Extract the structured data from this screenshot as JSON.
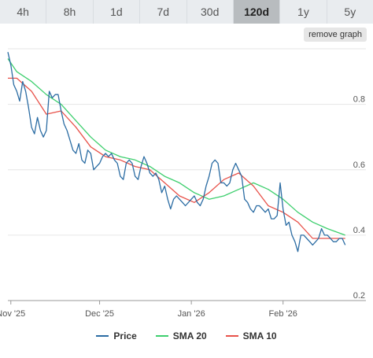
{
  "tabs": [
    "4h",
    "8h",
    "1d",
    "7d",
    "30d",
    "120d",
    "1y",
    "5y"
  ],
  "active_tab": "120d",
  "remove_graph_label": "remove graph",
  "colors": {
    "price": "#2b6ca3",
    "sma20": "#3ecf6e",
    "sma10": "#e8524a",
    "grid": "#e6e6e6"
  },
  "chart_data": {
    "type": "line",
    "x_ticks": [
      {
        "date": "2025-11-01",
        "label": "Nov '25"
      },
      {
        "date": "2025-12-01",
        "label": "Dec '25"
      },
      {
        "date": "2026-01-01",
        "label": "Jan '26"
      },
      {
        "date": "2026-02-01",
        "label": "Feb '26"
      }
    ],
    "x_range": [
      "2025-10-31",
      "2026-03-01"
    ],
    "y_ticks": [
      0.2,
      0.4,
      0.6,
      0.8
    ],
    "ylim": [
      0.2,
      0.97
    ],
    "grid": true,
    "legend": "bottom",
    "series": [
      {
        "name": "Price",
        "color_key": "price",
        "points": [
          [
            "2025-10-31",
            0.96
          ],
          [
            "2025-11-01",
            0.92
          ],
          [
            "2025-11-02",
            0.86
          ],
          [
            "2025-11-03",
            0.84
          ],
          [
            "2025-11-04",
            0.81
          ],
          [
            "2025-11-05",
            0.87
          ],
          [
            "2025-11-06",
            0.84
          ],
          [
            "2025-11-07",
            0.79
          ],
          [
            "2025-11-08",
            0.73
          ],
          [
            "2025-11-09",
            0.71
          ],
          [
            "2025-11-10",
            0.76
          ],
          [
            "2025-11-11",
            0.72
          ],
          [
            "2025-11-12",
            0.7
          ],
          [
            "2025-11-13",
            0.72
          ],
          [
            "2025-11-14",
            0.84
          ],
          [
            "2025-11-15",
            0.82
          ],
          [
            "2025-11-16",
            0.83
          ],
          [
            "2025-11-17",
            0.83
          ],
          [
            "2025-11-18",
            0.78
          ],
          [
            "2025-11-19",
            0.74
          ],
          [
            "2025-11-20",
            0.72
          ],
          [
            "2025-11-21",
            0.69
          ],
          [
            "2025-11-22",
            0.66
          ],
          [
            "2025-11-23",
            0.65
          ],
          [
            "2025-11-24",
            0.68
          ],
          [
            "2025-11-25",
            0.63
          ],
          [
            "2025-11-26",
            0.62
          ],
          [
            "2025-11-27",
            0.66
          ],
          [
            "2025-11-28",
            0.65
          ],
          [
            "2025-11-29",
            0.6
          ],
          [
            "2025-11-30",
            0.61
          ],
          [
            "2025-12-01",
            0.62
          ],
          [
            "2025-12-02",
            0.64
          ],
          [
            "2025-12-03",
            0.65
          ],
          [
            "2025-12-04",
            0.64
          ],
          [
            "2025-12-05",
            0.65
          ],
          [
            "2025-12-06",
            0.63
          ],
          [
            "2025-12-07",
            0.62
          ],
          [
            "2025-12-08",
            0.58
          ],
          [
            "2025-12-09",
            0.57
          ],
          [
            "2025-12-10",
            0.62
          ],
          [
            "2025-12-11",
            0.63
          ],
          [
            "2025-12-12",
            0.62
          ],
          [
            "2025-12-13",
            0.58
          ],
          [
            "2025-12-14",
            0.57
          ],
          [
            "2025-12-15",
            0.61
          ],
          [
            "2025-12-16",
            0.64
          ],
          [
            "2025-12-17",
            0.62
          ],
          [
            "2025-12-18",
            0.59
          ],
          [
            "2025-12-19",
            0.58
          ],
          [
            "2025-12-20",
            0.59
          ],
          [
            "2025-12-21",
            0.57
          ],
          [
            "2025-12-22",
            0.53
          ],
          [
            "2025-12-23",
            0.55
          ],
          [
            "2025-12-24",
            0.51
          ],
          [
            "2025-12-25",
            0.48
          ],
          [
            "2025-12-26",
            0.51
          ],
          [
            "2025-12-27",
            0.52
          ],
          [
            "2025-12-28",
            0.51
          ],
          [
            "2025-12-29",
            0.5
          ],
          [
            "2025-12-30",
            0.49
          ],
          [
            "2025-12-31",
            0.5
          ],
          [
            "2026-01-01",
            0.51
          ],
          [
            "2026-01-02",
            0.52
          ],
          [
            "2026-01-03",
            0.5
          ],
          [
            "2026-01-04",
            0.49
          ],
          [
            "2026-01-05",
            0.51
          ],
          [
            "2026-01-06",
            0.55
          ],
          [
            "2026-01-07",
            0.58
          ],
          [
            "2026-01-08",
            0.62
          ],
          [
            "2026-01-09",
            0.63
          ],
          [
            "2026-01-10",
            0.62
          ],
          [
            "2026-01-11",
            0.56
          ],
          [
            "2026-01-12",
            0.56
          ],
          [
            "2026-01-13",
            0.55
          ],
          [
            "2026-01-14",
            0.56
          ],
          [
            "2026-01-15",
            0.6
          ],
          [
            "2026-01-16",
            0.62
          ],
          [
            "2026-01-17",
            0.6
          ],
          [
            "2026-01-18",
            0.58
          ],
          [
            "2026-01-19",
            0.51
          ],
          [
            "2026-01-20",
            0.5
          ],
          [
            "2026-01-21",
            0.48
          ],
          [
            "2026-01-22",
            0.47
          ],
          [
            "2026-01-23",
            0.49
          ],
          [
            "2026-01-24",
            0.49
          ],
          [
            "2026-01-25",
            0.48
          ],
          [
            "2026-01-26",
            0.47
          ],
          [
            "2026-01-27",
            0.48
          ],
          [
            "2026-01-28",
            0.45
          ],
          [
            "2026-01-29",
            0.45
          ],
          [
            "2026-01-30",
            0.46
          ],
          [
            "2026-01-31",
            0.56
          ],
          [
            "2026-02-01",
            0.48
          ],
          [
            "2026-02-02",
            0.43
          ],
          [
            "2026-02-03",
            0.44
          ],
          [
            "2026-02-04",
            0.4
          ],
          [
            "2026-02-05",
            0.38
          ],
          [
            "2026-02-06",
            0.35
          ],
          [
            "2026-02-07",
            0.4
          ],
          [
            "2026-02-08",
            0.4
          ],
          [
            "2026-02-09",
            0.39
          ],
          [
            "2026-02-10",
            0.38
          ],
          [
            "2026-02-11",
            0.37
          ],
          [
            "2026-02-12",
            0.38
          ],
          [
            "2026-02-13",
            0.39
          ],
          [
            "2026-02-14",
            0.42
          ],
          [
            "2026-02-15",
            0.4
          ],
          [
            "2026-02-16",
            0.4
          ],
          [
            "2026-02-17",
            0.39
          ],
          [
            "2026-02-18",
            0.38
          ],
          [
            "2026-02-19",
            0.38
          ],
          [
            "2026-02-20",
            0.39
          ],
          [
            "2026-02-21",
            0.39
          ],
          [
            "2026-02-22",
            0.37
          ]
        ]
      },
      {
        "name": "SMA 20",
        "color_key": "sma20",
        "points": [
          [
            "2025-10-31",
            0.94
          ],
          [
            "2025-11-03",
            0.9
          ],
          [
            "2025-11-08",
            0.87
          ],
          [
            "2025-11-13",
            0.83
          ],
          [
            "2025-11-18",
            0.8
          ],
          [
            "2025-11-23",
            0.75
          ],
          [
            "2025-11-28",
            0.7
          ],
          [
            "2025-12-03",
            0.66
          ],
          [
            "2025-12-08",
            0.64
          ],
          [
            "2025-12-13",
            0.63
          ],
          [
            "2025-12-18",
            0.61
          ],
          [
            "2025-12-23",
            0.58
          ],
          [
            "2025-12-28",
            0.56
          ],
          [
            "2026-01-02",
            0.53
          ],
          [
            "2026-01-07",
            0.51
          ],
          [
            "2026-01-12",
            0.52
          ],
          [
            "2026-01-17",
            0.54
          ],
          [
            "2026-01-22",
            0.56
          ],
          [
            "2026-01-27",
            0.54
          ],
          [
            "2026-02-01",
            0.51
          ],
          [
            "2026-02-06",
            0.47
          ],
          [
            "2026-02-11",
            0.44
          ],
          [
            "2026-02-16",
            0.42
          ],
          [
            "2026-02-22",
            0.4
          ]
        ]
      },
      {
        "name": "SMA 10",
        "color_key": "sma10",
        "points": [
          [
            "2025-10-31",
            0.88
          ],
          [
            "2025-11-03",
            0.88
          ],
          [
            "2025-11-08",
            0.84
          ],
          [
            "2025-11-13",
            0.77
          ],
          [
            "2025-11-18",
            0.78
          ],
          [
            "2025-11-23",
            0.73
          ],
          [
            "2025-11-28",
            0.67
          ],
          [
            "2025-12-03",
            0.64
          ],
          [
            "2025-12-08",
            0.63
          ],
          [
            "2025-12-13",
            0.61
          ],
          [
            "2025-12-18",
            0.6
          ],
          [
            "2025-12-23",
            0.56
          ],
          [
            "2025-12-28",
            0.52
          ],
          [
            "2026-01-02",
            0.5
          ],
          [
            "2026-01-07",
            0.53
          ],
          [
            "2026-01-12",
            0.57
          ],
          [
            "2026-01-17",
            0.59
          ],
          [
            "2026-01-22",
            0.55
          ],
          [
            "2026-01-27",
            0.49
          ],
          [
            "2026-02-01",
            0.47
          ],
          [
            "2026-02-06",
            0.44
          ],
          [
            "2026-02-11",
            0.39
          ],
          [
            "2026-02-16",
            0.39
          ],
          [
            "2026-02-22",
            0.39
          ]
        ]
      }
    ]
  }
}
